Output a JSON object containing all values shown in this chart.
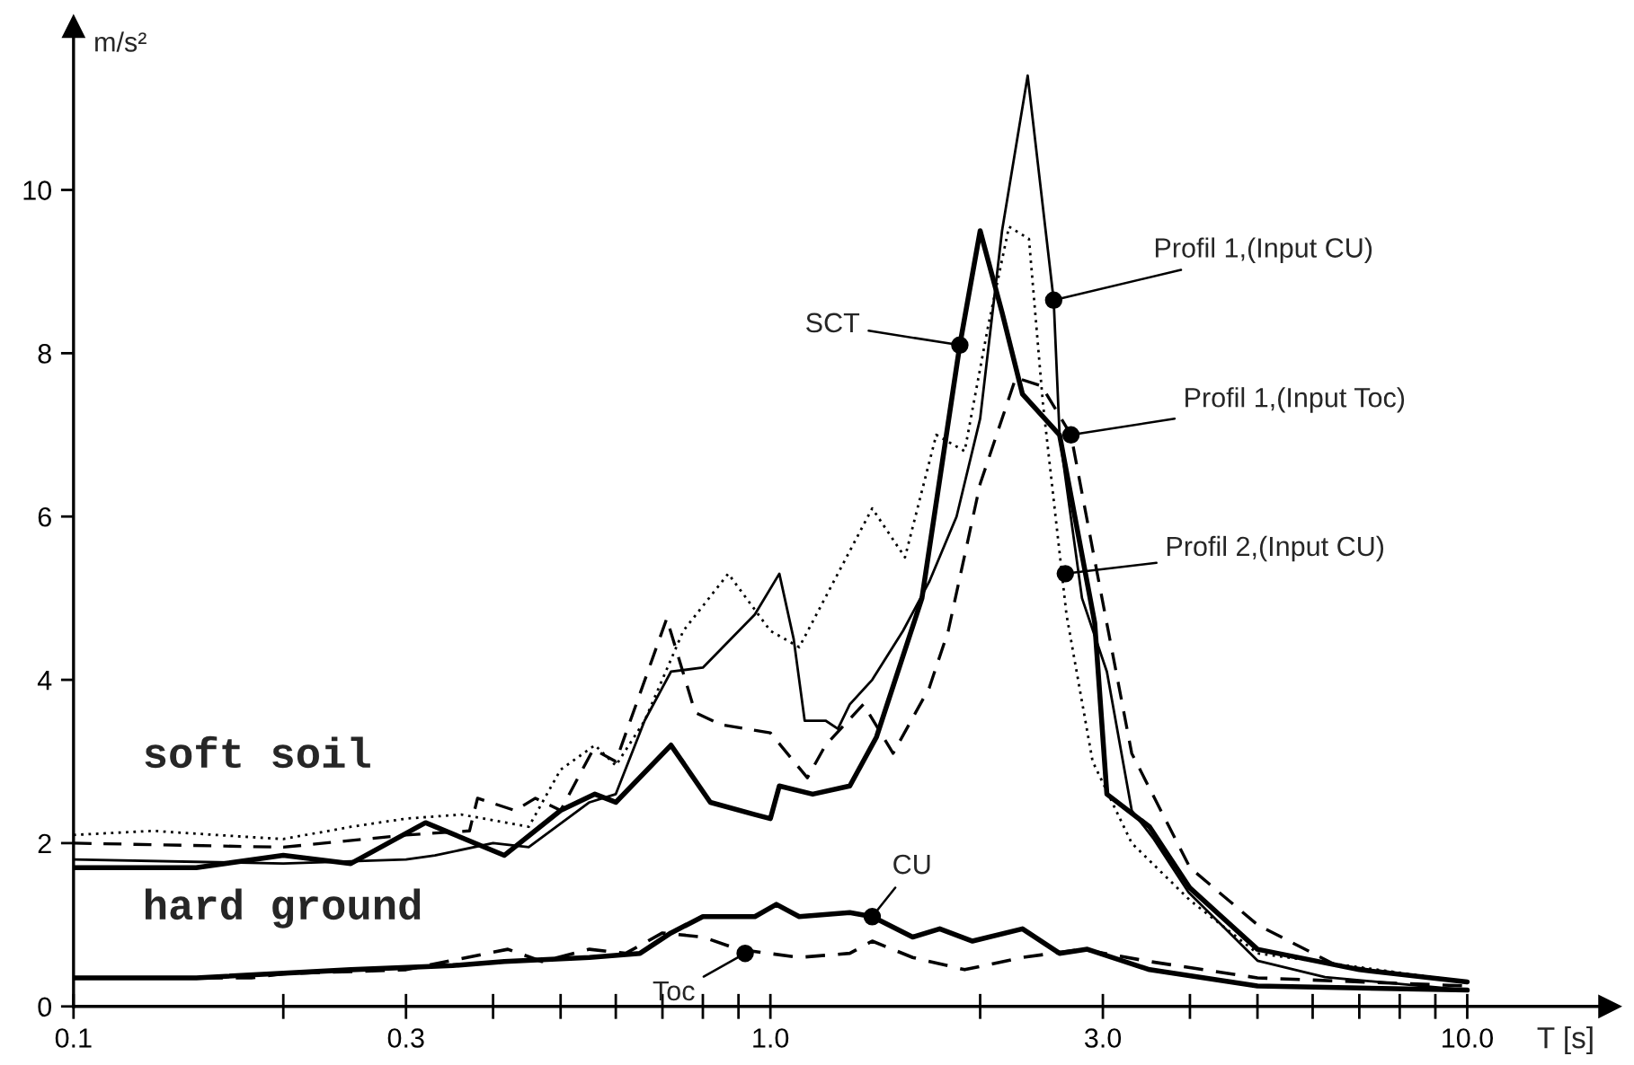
{
  "chart_data": {
    "type": "line",
    "xlabel": "T [s]",
    "ylabel": "m/s²",
    "log": "x",
    "xlim": [
      0.1,
      16
    ],
    "ylim": [
      0,
      12
    ],
    "xticks": [
      0.1,
      {
        "value": 0.2,
        "label": null
      },
      0.3,
      {
        "value": 0.4,
        "label": null
      },
      {
        "value": 0.5,
        "label": null
      },
      {
        "value": 0.6,
        "label": null
      },
      {
        "value": 0.7,
        "label": null
      },
      {
        "value": 0.8,
        "label": null
      },
      {
        "value": 0.9,
        "label": null
      },
      {
        "value": 1,
        "label": "1.0"
      },
      {
        "value": 2,
        "label": null
      },
      {
        "value": 3,
        "label": "3.0"
      },
      {
        "value": 4,
        "label": null
      },
      {
        "value": 5,
        "label": null
      },
      {
        "value": 6,
        "label": null
      },
      {
        "value": 7,
        "label": null
      },
      {
        "value": 8,
        "label": null
      },
      {
        "value": 9,
        "label": null
      },
      {
        "value": 10,
        "label": "10.0"
      }
    ],
    "yticks": [
      0,
      2,
      4,
      6,
      8,
      10
    ],
    "grid": false,
    "series": [
      {
        "color": "#000000",
        "line_style": "solid",
        "x": [
          0.1,
          0.15,
          0.2,
          0.25,
          0.32,
          0.415,
          0.5,
          0.56,
          0.6,
          0.72,
          0.82,
          0.95,
          1.0,
          1.03,
          1.15,
          1.3,
          1.42,
          1.65,
          1.87,
          2.0,
          2.15,
          2.3,
          2.6,
          2.92,
          3.04,
          3.5,
          4.0,
          5.0,
          7.0,
          10.0
        ],
        "values": [
          1.7,
          1.7,
          1.85,
          1.75,
          2.25,
          1.85,
          2.4,
          2.6,
          2.5,
          3.2,
          2.5,
          2.35,
          2.3,
          2.7,
          2.6,
          2.7,
          3.3,
          5.0,
          8.1,
          9.5,
          8.5,
          7.5,
          7.0,
          4.7,
          2.6,
          2.2,
          1.45,
          0.7,
          0.45,
          0.3
        ]
      },
      {
        "color": "#000000",
        "line_style": "solid",
        "x": [
          0.1,
          0.2,
          0.3,
          0.33,
          0.4,
          0.45,
          0.55,
          0.6,
          0.66,
          0.72,
          0.8,
          0.95,
          1.03,
          1.08,
          1.12,
          1.2,
          1.25,
          1.3,
          1.4,
          1.55,
          1.69,
          1.85,
          2.0,
          2.15,
          2.34,
          2.55,
          2.6,
          2.8,
          3.04,
          3.3,
          3.55,
          3.98,
          5.0,
          6.25,
          10.0
        ],
        "values": [
          1.8,
          1.75,
          1.8,
          1.85,
          2.0,
          1.95,
          2.5,
          2.6,
          3.5,
          4.1,
          4.15,
          4.8,
          5.3,
          4.5,
          3.5,
          3.5,
          3.4,
          3.7,
          4.0,
          4.6,
          5.2,
          6.0,
          7.2,
          9.5,
          11.4,
          8.65,
          7.0,
          5.0,
          4.1,
          2.4,
          2.05,
          1.4,
          0.56,
          0.36,
          0.2
        ]
      },
      {
        "color": "#000000",
        "line_style": "dashed",
        "x": [
          0.1,
          0.2,
          0.3,
          0.37,
          0.38,
          0.43,
          0.46,
          0.5,
          0.557,
          0.6,
          0.71,
          0.78,
          0.85,
          1.0,
          1.13,
          1.2,
          1.36,
          1.5,
          1.69,
          1.8,
          2.0,
          2.25,
          2.45,
          2.7,
          2.9,
          3.3,
          4.0,
          5.0,
          6.5,
          10.0
        ],
        "values": [
          2.0,
          1.95,
          2.1,
          2.15,
          2.55,
          2.4,
          2.55,
          2.4,
          3.15,
          3.0,
          4.75,
          3.6,
          3.45,
          3.35,
          2.8,
          3.2,
          3.7,
          3.1,
          3.9,
          4.6,
          6.4,
          7.7,
          7.6,
          7.0,
          5.6,
          3.1,
          1.7,
          1.0,
          0.5,
          0.3
        ]
      },
      {
        "color": "#000000",
        "line_style": "dotted",
        "x": [
          0.1,
          0.13,
          0.16,
          0.2,
          0.25,
          0.3,
          0.36,
          0.45,
          0.5,
          0.56,
          0.6,
          0.66,
          0.75,
          0.87,
          1.0,
          1.1,
          1.4,
          1.56,
          1.73,
          1.9,
          2.05,
          2.2,
          2.35,
          2.46,
          2.66,
          2.9,
          3.3,
          4.0,
          5.0,
          10.0
        ],
        "values": [
          2.1,
          2.15,
          2.1,
          2.05,
          2.2,
          2.3,
          2.35,
          2.2,
          2.9,
          3.2,
          2.95,
          3.5,
          4.6,
          5.3,
          4.6,
          4.4,
          6.1,
          5.5,
          7.0,
          6.8,
          8.3,
          9.55,
          9.4,
          7.4,
          4.8,
          3.0,
          2.0,
          1.3,
          0.65,
          0.3
        ]
      },
      {
        "color": "#000000",
        "line_style": "solid",
        "x": [
          0.1,
          0.15,
          0.25,
          0.35,
          0.415,
          0.55,
          0.65,
          0.72,
          0.8,
          0.95,
          1.02,
          1.1,
          1.3,
          1.4,
          1.6,
          1.75,
          1.95,
          2.3,
          2.6,
          2.85,
          3.5,
          5.0,
          10.0
        ],
        "values": [
          0.35,
          0.35,
          0.45,
          0.5,
          0.55,
          0.6,
          0.65,
          0.9,
          1.1,
          1.1,
          1.25,
          1.1,
          1.15,
          1.1,
          0.85,
          0.95,
          0.8,
          0.95,
          0.65,
          0.7,
          0.45,
          0.25,
          0.2
        ]
      },
      {
        "color": "#000000",
        "line_style": "dashed",
        "x": [
          0.1,
          0.18,
          0.2,
          0.3,
          0.42,
          0.47,
          0.55,
          0.62,
          0.7,
          0.8,
          0.9,
          1.1,
          1.3,
          1.4,
          1.6,
          1.9,
          2.3,
          2.8,
          3.5,
          5.0,
          10.0
        ],
        "values": [
          0.35,
          0.35,
          0.4,
          0.45,
          0.7,
          0.55,
          0.7,
          0.65,
          0.9,
          0.85,
          0.7,
          0.6,
          0.65,
          0.8,
          0.6,
          0.45,
          0.6,
          0.7,
          0.55,
          0.35,
          0.25
        ]
      }
    ],
    "annotations": [
      {
        "text": "SCT",
        "x": 1.87,
        "y": 8.1
      },
      {
        "text": "Profil 1,(Input CU)",
        "x": 2.55,
        "y": 8.65
      },
      {
        "text": "Profil 1,(Input Toc)",
        "x": 2.7,
        "y": 7.0
      },
      {
        "text": "Profil 2,(Input CU)",
        "x": 2.65,
        "y": 5.3
      },
      {
        "text": "CU",
        "x": 1.4,
        "y": 1.1
      },
      {
        "text": "Toc",
        "x": 0.92,
        "y": 0.65
      },
      "soft soil",
      "hard ground"
    ]
  }
}
